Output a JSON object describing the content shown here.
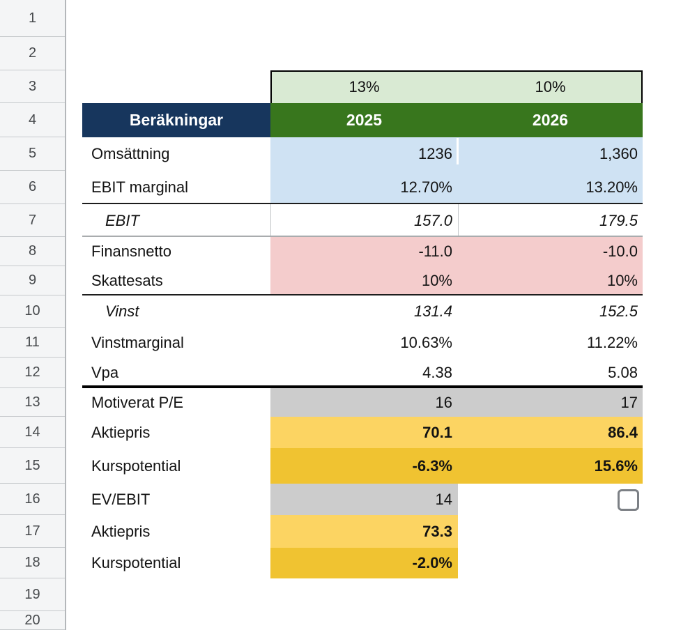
{
  "grid": {
    "row_numbers": [
      "1",
      "2",
      "3",
      "4",
      "5",
      "6",
      "7",
      "8",
      "9",
      "10",
      "11",
      "12",
      "13",
      "14",
      "15",
      "16",
      "17",
      "18",
      "19",
      "20"
    ]
  },
  "table": {
    "header": {
      "title": "Beräkningar",
      "scenario_2025": "13%",
      "scenario_2026": "10%",
      "year_2025": "2025",
      "year_2026": "2026"
    },
    "rows": [
      {
        "label": "Omsättning",
        "v2025": "1236",
        "v2026": "1,360"
      },
      {
        "label": "EBIT marginal",
        "v2025": "12.70%",
        "v2026": "13.20%"
      },
      {
        "label": "EBIT",
        "v2025": "157.0",
        "v2026": "179.5"
      },
      {
        "label": "Finansnetto",
        "v2025": "-11.0",
        "v2026": "-10.0"
      },
      {
        "label": "Skattesats",
        "v2025": "10%",
        "v2026": "10%"
      },
      {
        "label": "Vinst",
        "v2025": "131.4",
        "v2026": "152.5"
      },
      {
        "label": "Vinstmarginal",
        "v2025": "10.63%",
        "v2026": "11.22%"
      },
      {
        "label": "Vpa",
        "v2025": "4.38",
        "v2026": "5.08"
      },
      {
        "label": "Motiverat P/E",
        "v2025": "16",
        "v2026": "17"
      },
      {
        "label": "Aktiepris",
        "v2025": "70.1",
        "v2026": "86.4"
      },
      {
        "label": "Kurspotential",
        "v2025": "-6.3%",
        "v2026": "15.6%"
      },
      {
        "label": "EV/EBIT",
        "v2025": "14"
      },
      {
        "label": "Aktiepris",
        "v2025": "73.3"
      },
      {
        "label": "Kurspotential",
        "v2025": "-2.0%"
      }
    ],
    "checkbox_2026_checked": false
  },
  "colors": {
    "header_navy": "#17365d",
    "header_green_dark": "#38761d",
    "scenario_green_light": "#d9ead3",
    "revenue_blue": "#cfe2f3",
    "finance_pink": "#f4cccc",
    "pe_gray": "#cccccc",
    "price_gold_light": "#fcd462",
    "potential_gold_dark": "#f0c331",
    "row_header_bg": "#f4f5f6"
  }
}
